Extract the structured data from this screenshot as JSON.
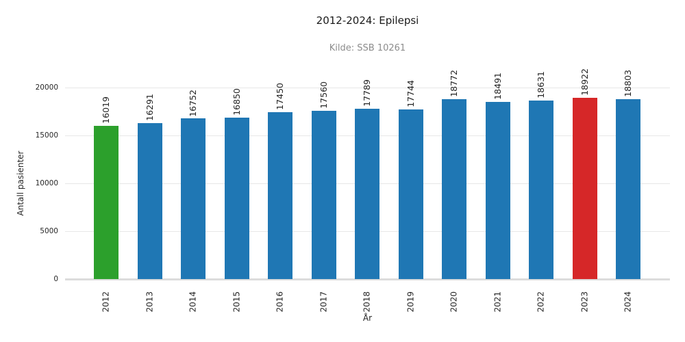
{
  "header": {
    "title": "2012-2024: Epilepsi",
    "subtitle": "Kilde: SSB 10261"
  },
  "chart_data": {
    "type": "bar",
    "title": "2012-2024: Epilepsi",
    "subtitle": "Kilde: SSB 10261",
    "xlabel": "År",
    "ylabel": "Antall pasienter",
    "categories": [
      "2012",
      "2013",
      "2014",
      "2015",
      "2016",
      "2017",
      "2018",
      "2019",
      "2020",
      "2021",
      "2022",
      "2023",
      "2024"
    ],
    "values": [
      16019,
      16291,
      16752,
      16850,
      17450,
      17560,
      17789,
      17744,
      18772,
      18491,
      18631,
      18922,
      18803
    ],
    "bar_colors": [
      "#2ca02c",
      "#1f77b4",
      "#1f77b4",
      "#1f77b4",
      "#1f77b4",
      "#1f77b4",
      "#1f77b4",
      "#1f77b4",
      "#1f77b4",
      "#1f77b4",
      "#1f77b4",
      "#d62728",
      "#1f77b4"
    ],
    "yticks": [
      0,
      5000,
      10000,
      15000,
      20000
    ],
    "ytick_labels": [
      "0",
      "5000",
      "10000",
      "15000",
      "20000"
    ],
    "ylim": [
      0,
      20000
    ],
    "grid": true,
    "legend": "none",
    "value_labels_rotated": true,
    "colors": {
      "default_bar": "#1f77b4",
      "highlight_first": "#2ca02c",
      "highlight_2023": "#d62728",
      "gridline": "#e7e7e7",
      "baseline": "#dcdcdc",
      "title_text": "#1a1a1a",
      "subtitle_text": "#8c8c8c",
      "tick_text": "#262626",
      "background": "#ffffff"
    }
  }
}
